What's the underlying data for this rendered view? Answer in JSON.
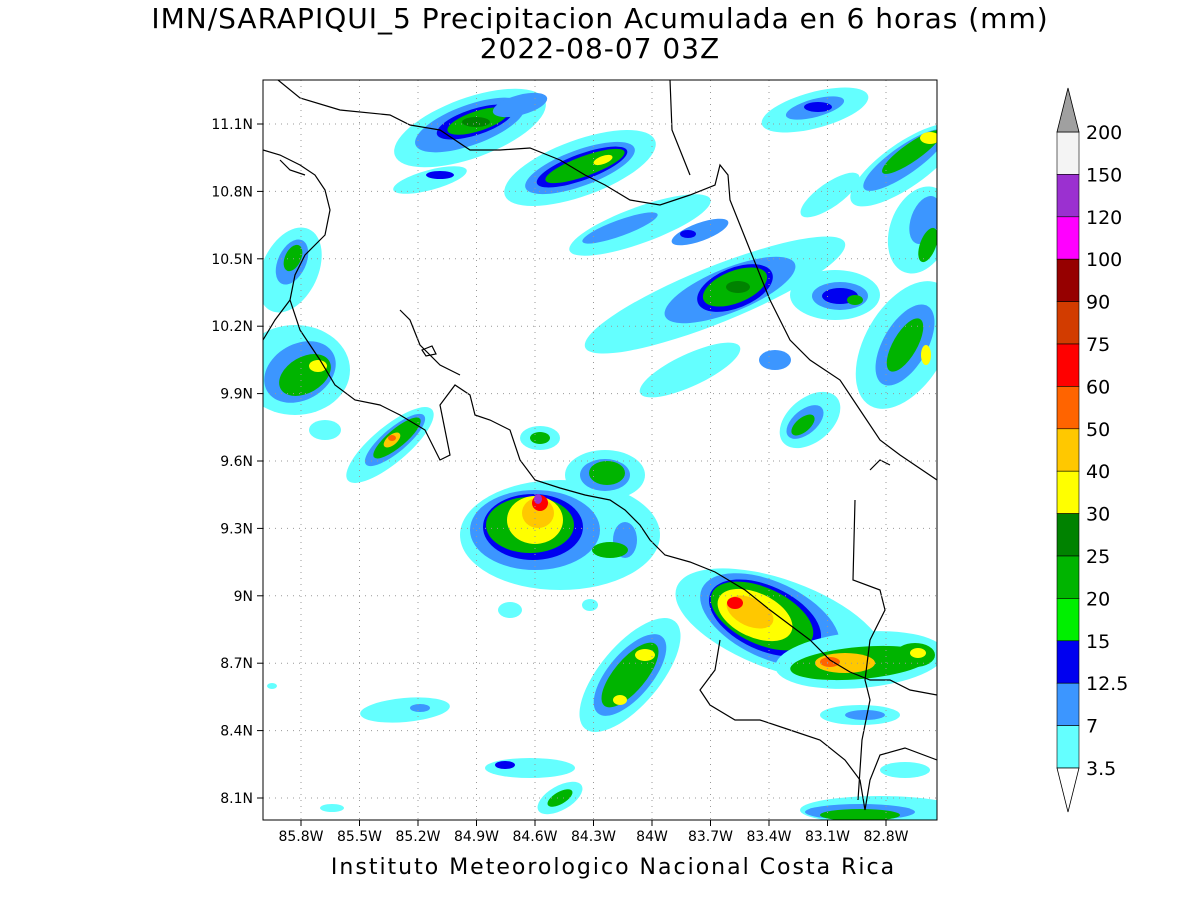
{
  "title_line1": "IMN/SARAPIQUI_5 Precipitacion Acumulada en 6 horas (mm)",
  "title_line2": "2022-08-07 03Z",
  "footer": "Instituto Meteorologico Nacional Costa Rica",
  "map": {
    "lat_ticks": [
      "11.1N",
      "10.8N",
      "10.5N",
      "10.2N",
      "9.9N",
      "9.6N",
      "9.3N",
      "9N",
      "8.7N",
      "8.4N",
      "8.1N"
    ],
    "lon_ticks": [
      "85.8W",
      "85.5W",
      "85.2W",
      "84.9W",
      "84.6W",
      "84.3W",
      "84W",
      "83.7W",
      "83.4W",
      "83.1W",
      "82.8W"
    ],
    "grid": "dotted",
    "coastline_color": "#000000"
  },
  "colorbar": {
    "levels": [
      "200",
      "150",
      "120",
      "100",
      "90",
      "75",
      "60",
      "50",
      "40",
      "30",
      "25",
      "20",
      "15",
      "12.5",
      "7",
      "3.5"
    ],
    "colors": [
      "#f4f4f4",
      "#9b30d0",
      "#ff00ff",
      "#960000",
      "#d23c00",
      "#ff0000",
      "#ff6400",
      "#ffc800",
      "#ffff00",
      "#008200",
      "#00b400",
      "#00f000",
      "#0000f0",
      "#3c96ff",
      "#64ffff"
    ],
    "top_arrow_color": "#a0a0a0",
    "bottom_arrow_color": "#ffffff"
  }
}
